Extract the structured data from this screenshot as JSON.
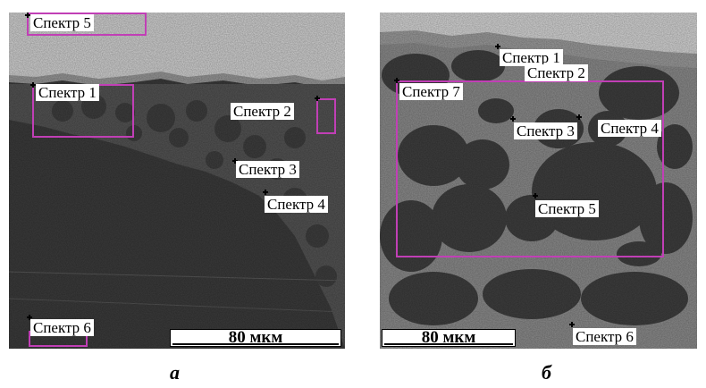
{
  "panels": [
    {
      "letter": "а",
      "scale_bar": "80 мкм",
      "labels": [
        "Спектр 5",
        "Спектр 1",
        "Спектр 2",
        "Спектр 3",
        "Спектр 4",
        "Спектр 6"
      ]
    },
    {
      "letter": "б",
      "scale_bar": "80 мкм",
      "labels": [
        "Спектр 1",
        "Спектр 2",
        "Спектр 7",
        "Спектр 3",
        "Спектр 4",
        "Спектр 5",
        "Спектр 6"
      ]
    }
  ],
  "colors": {
    "roi_box": "#c13fb6",
    "background_light": "#d6d6d6",
    "matrix_dark": "#3a3a3a",
    "particle": "#4a4a4a",
    "interparticle_light": "#8f8f8f"
  }
}
